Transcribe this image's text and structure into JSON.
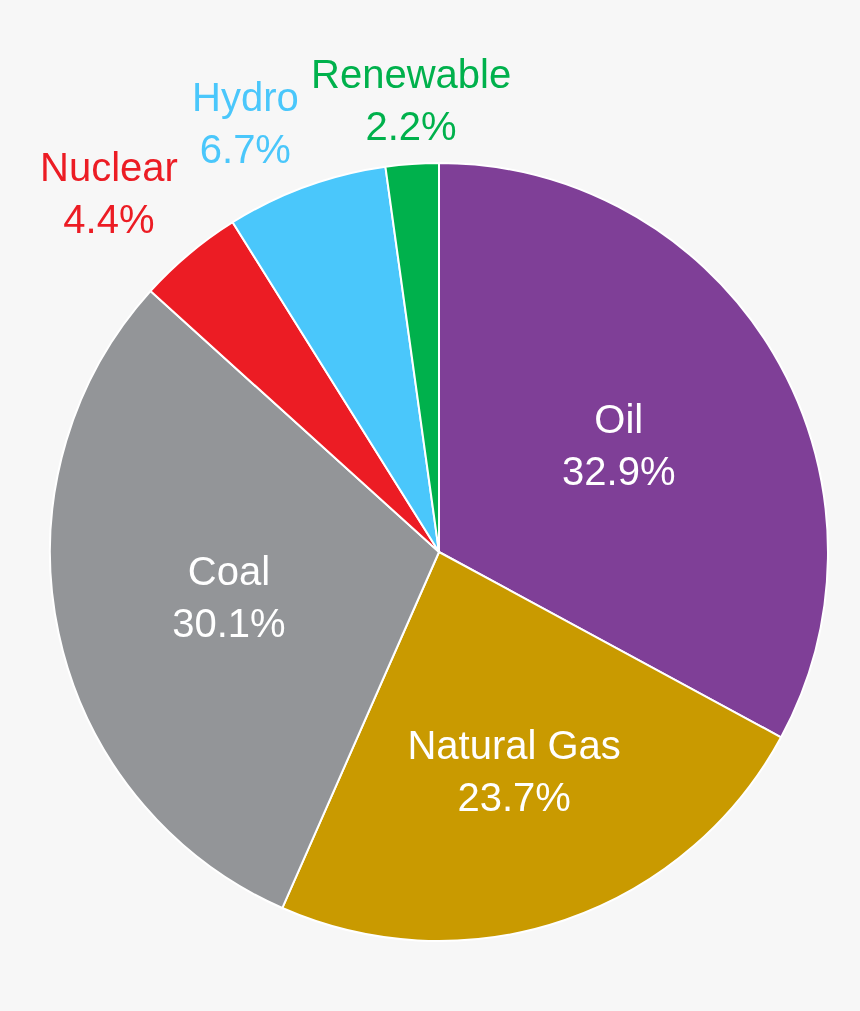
{
  "chart_data": {
    "type": "pie",
    "categories": [
      "Oil",
      "Natural Gas",
      "Coal",
      "Nuclear",
      "Hydro",
      "Renewable"
    ],
    "values": [
      32.9,
      23.7,
      30.1,
      4.4,
      6.7,
      2.2
    ],
    "value_labels": [
      "32.9%",
      "23.7%",
      "30.1%",
      "4.4%",
      "6.7%",
      "2.2%"
    ],
    "colors": [
      "#7f3f97",
      "#c99a00",
      "#939598",
      "#ec1c24",
      "#4ac7fb",
      "#00b14c"
    ],
    "legend": false
  }
}
